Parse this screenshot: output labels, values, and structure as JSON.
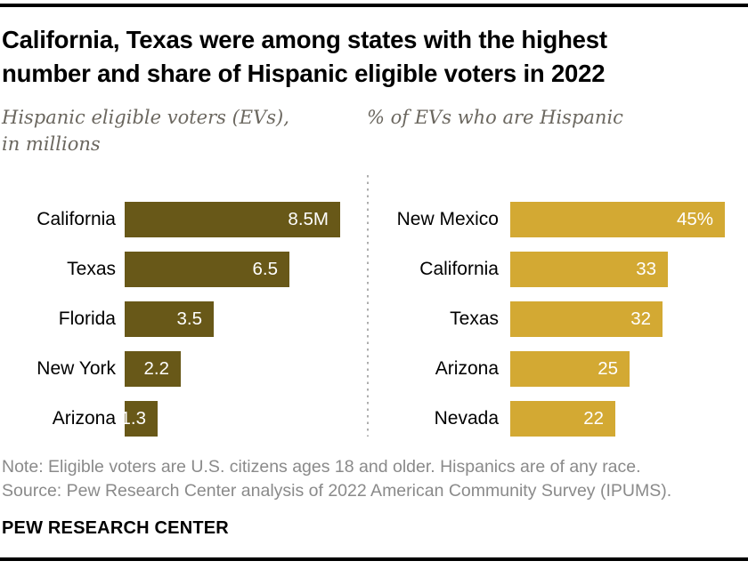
{
  "header": {
    "title_lines": [
      "California, Texas were among states with the highest",
      "number and share of Hispanic eligible voters in 2022"
    ]
  },
  "subtitles": {
    "left_lines": [
      "Hispanic eligible voters (EVs),",
      "in millions"
    ],
    "right": "% of EVs who are Hispanic"
  },
  "chart_data": [
    {
      "type": "bar",
      "orientation": "horizontal",
      "title": "Hispanic eligible voters (EVs), in millions",
      "categories": [
        "California",
        "Texas",
        "Florida",
        "New York",
        "Arizona"
      ],
      "values": [
        8.5,
        6.5,
        3.5,
        2.2,
        1.3
      ],
      "value_labels": [
        "8.5M",
        "6.5",
        "3.5",
        "2.2",
        "1.3"
      ],
      "unit": "millions of eligible voters",
      "xlim": [
        0,
        8.5
      ],
      "bar_color": "#685818",
      "grid": false,
      "legend": "none"
    },
    {
      "type": "bar",
      "orientation": "horizontal",
      "title": "% of EVs who are Hispanic",
      "categories": [
        "New Mexico",
        "California",
        "Texas",
        "Arizona",
        "Nevada"
      ],
      "values": [
        45,
        33,
        32,
        25,
        22
      ],
      "value_labels": [
        "45%",
        "33",
        "32",
        "25",
        "22"
      ],
      "unit": "percent",
      "xlim": [
        0,
        45
      ],
      "bar_color": "#d3a933",
      "grid": false,
      "legend": "none"
    }
  ],
  "footer": {
    "note": "Note: Eligible voters are U.S. citizens ages 18 and older. Hispanics are of any race.",
    "source": "Source: Pew Research Center analysis of 2022 American Community Survey (IPUMS).",
    "brand": "PEW RESEARCH CENTER"
  },
  "colors": {
    "left_bar": "#685818",
    "right_bar": "#d3a933",
    "rule_black": "#000000",
    "subtitle_gray": "#6b675f",
    "note_gray": "#8a8a8a",
    "divider_gray": "#aeaeae",
    "value_text": "#ffffff"
  }
}
